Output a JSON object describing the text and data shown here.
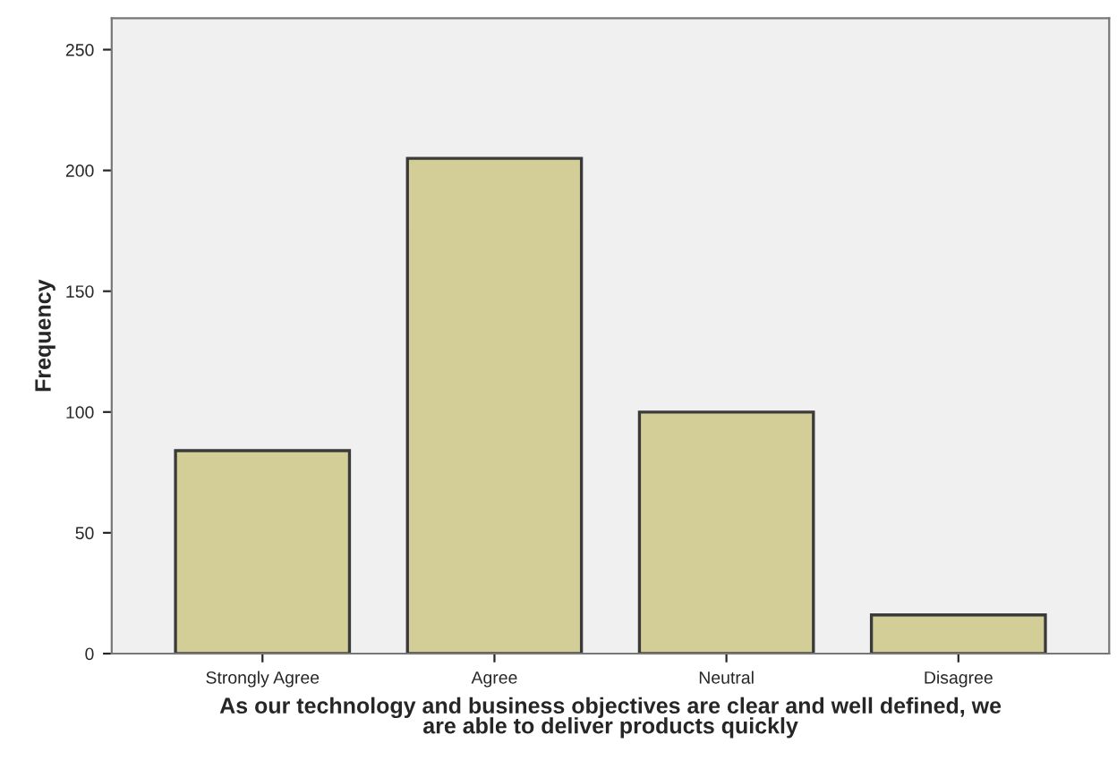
{
  "chart_data": {
    "type": "bar",
    "xlabel": "As our technology and business objectives are clear and well defined, we\nare able to deliver products quickly",
    "ylabel": "Frequency",
    "categories": [
      "Strongly Agree",
      "Agree",
      "Neutral",
      "Disagree"
    ],
    "values": [
      84,
      205,
      100,
      16
    ],
    "color": "#d3ce97",
    "ylim": [
      0,
      263
    ],
    "yticks": [
      0,
      50,
      100,
      150,
      200,
      250
    ],
    "grid": false
  }
}
